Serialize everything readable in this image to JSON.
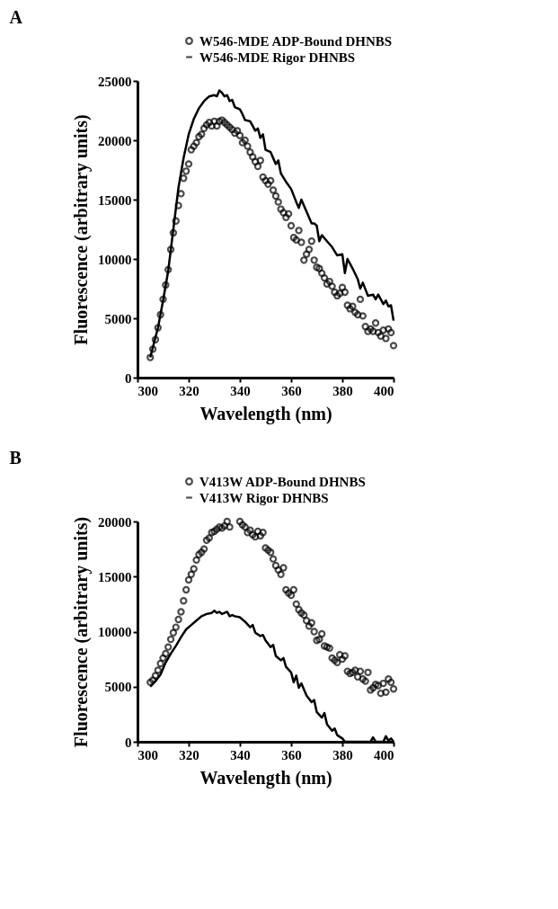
{
  "chart_data": [
    {
      "type": "line",
      "title": "A",
      "xlabel": "Wavelength (nm)",
      "ylabel": "Fluorescence (arbitrary units)",
      "xlim": [
        300,
        400
      ],
      "xticks": [
        300,
        320,
        340,
        360,
        380,
        400
      ],
      "ylim": [
        0,
        25000
      ],
      "yticks": [
        0,
        5000,
        10000,
        15000,
        20000,
        25000
      ],
      "grid": false,
      "legend": "top right",
      "series": [
        {
          "name": "W546-MDE ADP-Bound DHNBS",
          "type": "scatter",
          "marker": "circle",
          "color": "#000000",
          "x": [
            305,
            306,
            307,
            308,
            309,
            310,
            311,
            312,
            313,
            314,
            315,
            316,
            317,
            318,
            319,
            320,
            321,
            322,
            323,
            324,
            325,
            326,
            327,
            328,
            329,
            330,
            331,
            332,
            333,
            334,
            335,
            336,
            337,
            338,
            339,
            340,
            341,
            342,
            343,
            344,
            345,
            346,
            347,
            348,
            349,
            350,
            351,
            352,
            353,
            354,
            355,
            356,
            357,
            358,
            359,
            360,
            361,
            362,
            363,
            364,
            365,
            366,
            367,
            368,
            369,
            370,
            371,
            372,
            373,
            374,
            375,
            376,
            377,
            378,
            379,
            380,
            381,
            382,
            383,
            384,
            385,
            386,
            387,
            388,
            389,
            390,
            391,
            392,
            393,
            394,
            395,
            396,
            397,
            398,
            399,
            400
          ],
          "values": [
            1700,
            2400,
            3200,
            4200,
            5300,
            6600,
            7800,
            9100,
            10800,
            12200,
            13200,
            14500,
            15500,
            16800,
            17400,
            18000,
            19200,
            19500,
            19800,
            20300,
            20500,
            21000,
            21300,
            21500,
            21200,
            21600,
            21200,
            21600,
            21700,
            21500,
            21300,
            21100,
            20900,
            20600,
            20800,
            20400,
            19800,
            20000,
            19500,
            19000,
            18600,
            18200,
            17800,
            18300,
            16900,
            16600,
            16300,
            16600,
            15800,
            15300,
            14800,
            14200,
            13900,
            13500,
            13800,
            12800,
            11800,
            11600,
            12400,
            11400,
            9900,
            10400,
            10800,
            11500,
            9900,
            9300,
            9200,
            8800,
            8400,
            7900,
            8100,
            7700,
            7200,
            6900,
            7100,
            7600,
            7200,
            6100,
            5800,
            6000,
            5500,
            5300,
            6600,
            5200,
            4300,
            3900,
            4100,
            3900,
            4600,
            3800,
            3500,
            4000,
            3300,
            4100,
            3800,
            2700
          ]
        },
        {
          "name": "W546-MDE Rigor DHNBS",
          "type": "line",
          "line_style": "solid",
          "color": "#000000",
          "x": [
            305,
            308,
            310,
            312,
            314,
            316,
            318,
            320,
            322,
            324,
            326,
            328,
            330,
            331,
            332,
            333,
            334,
            335,
            336,
            337,
            338,
            340,
            341,
            342,
            344,
            346,
            347,
            348,
            349,
            350,
            352,
            354,
            355,
            356,
            358,
            360,
            362,
            363,
            364,
            366,
            368,
            369,
            370,
            371,
            372,
            374,
            376,
            378,
            380,
            381,
            382,
            384,
            386,
            387,
            388,
            390,
            392,
            393,
            394,
            396,
            397,
            398,
            399,
            400
          ],
          "values": [
            1700,
            4200,
            6500,
            9000,
            12500,
            16000,
            18500,
            20500,
            21800,
            22700,
            23300,
            23700,
            23800,
            23700,
            24200,
            24000,
            23700,
            23800,
            23300,
            23400,
            22800,
            22600,
            22200,
            21700,
            21600,
            20800,
            21000,
            20200,
            20500,
            19200,
            19000,
            18000,
            18300,
            17200,
            16500,
            15900,
            14800,
            14300,
            15000,
            14000,
            13000,
            13000,
            12800,
            11500,
            12000,
            11500,
            11000,
            10300,
            10400,
            8800,
            10000,
            9200,
            8300,
            7500,
            8000,
            6900,
            7000,
            6600,
            7000,
            6200,
            6500,
            6000,
            6100,
            4800
          ]
        }
      ]
    },
    {
      "type": "line",
      "title": "B",
      "xlabel": "Wavelength (nm)",
      "ylabel": "Fluorescence (arbitrary units)",
      "xlim": [
        300,
        400
      ],
      "xticks": [
        300,
        320,
        340,
        360,
        380,
        400
      ],
      "ylim": [
        0,
        20000
      ],
      "yticks": [
        0,
        5000,
        10000,
        15000,
        20000
      ],
      "grid": false,
      "legend": "top right",
      "series": [
        {
          "name": "V413W ADP-Bound DHNBS",
          "type": "scatter",
          "marker": "circle",
          "color": "#000000",
          "x": [
            305,
            306,
            307,
            308,
            309,
            310,
            311,
            312,
            313,
            314,
            315,
            316,
            317,
            318,
            319,
            320,
            321,
            322,
            323,
            324,
            325,
            326,
            327,
            328,
            329,
            330,
            331,
            332,
            333,
            334,
            335,
            336,
            340,
            341,
            342,
            343,
            344,
            345,
            346,
            347,
            348,
            349,
            350,
            351,
            352,
            353,
            354,
            355,
            356,
            357,
            358,
            359,
            360,
            361,
            362,
            363,
            364,
            365,
            366,
            367,
            368,
            369,
            370,
            371,
            372,
            373,
            374,
            375,
            376,
            377,
            378,
            379,
            380,
            381,
            382,
            383,
            384,
            385,
            386,
            387,
            388,
            389,
            390,
            391,
            392,
            393,
            394,
            395,
            396,
            397,
            398,
            399,
            400
          ],
          "values": [
            5400,
            5600,
            6000,
            6500,
            7100,
            7600,
            8000,
            8600,
            9300,
            9900,
            10400,
            11100,
            11800,
            12800,
            13800,
            14700,
            15200,
            15700,
            16500,
            17000,
            17200,
            17500,
            18300,
            18500,
            19000,
            19100,
            19300,
            19500,
            19400,
            19600,
            20000,
            19500,
            20000,
            19700,
            19500,
            19000,
            19200,
            18800,
            18600,
            19100,
            18700,
            19000,
            17600,
            17400,
            17200,
            16600,
            16000,
            15600,
            15200,
            15800,
            13800,
            13500,
            13300,
            13800,
            12500,
            12000,
            11700,
            11500,
            11000,
            10500,
            10800,
            10000,
            9200,
            9300,
            9800,
            8700,
            8600,
            8500,
            7600,
            7400,
            7200,
            7900,
            7500,
            7800,
            6400,
            6200,
            6300,
            6500,
            5900,
            6400,
            5700,
            5500,
            6300,
            4700,
            4900,
            5200,
            5100,
            4400,
            5300,
            4500,
            5700,
            5400,
            4800
          ]
        },
        {
          "name": "V413W Rigor DHNBS",
          "type": "line",
          "line_style": "solid",
          "color": "#000000",
          "x": [
            305,
            307,
            309,
            311,
            313,
            315,
            317,
            319,
            321,
            323,
            325,
            327,
            329,
            330,
            331,
            332,
            333,
            334,
            335,
            336,
            337,
            338,
            340,
            342,
            344,
            345,
            346,
            348,
            349,
            350,
            352,
            353,
            354,
            356,
            357,
            358,
            360,
            361,
            362,
            363,
            364,
            366,
            368,
            369,
            370,
            372,
            373,
            374,
            376,
            377,
            378,
            380,
            381,
            382,
            384,
            386,
            388,
            390,
            391,
            392,
            393,
            396,
            397,
            398,
            399,
            400
          ],
          "values": [
            5000,
            5500,
            6100,
            7200,
            8000,
            8700,
            9500,
            10200,
            10600,
            11000,
            11400,
            11600,
            11700,
            11900,
            11700,
            11800,
            11600,
            11700,
            11800,
            11400,
            11500,
            11400,
            11300,
            10900,
            10400,
            10600,
            9900,
            9600,
            9700,
            9200,
            8600,
            8800,
            7800,
            7400,
            7600,
            6800,
            6300,
            5400,
            6000,
            4900,
            5300,
            4200,
            3600,
            3800,
            2700,
            2200,
            2600,
            1600,
            1000,
            1200,
            600,
            300,
            0,
            0,
            0,
            0,
            0,
            0,
            0,
            400,
            0,
            0,
            500,
            100,
            300,
            0
          ]
        }
      ]
    }
  ]
}
